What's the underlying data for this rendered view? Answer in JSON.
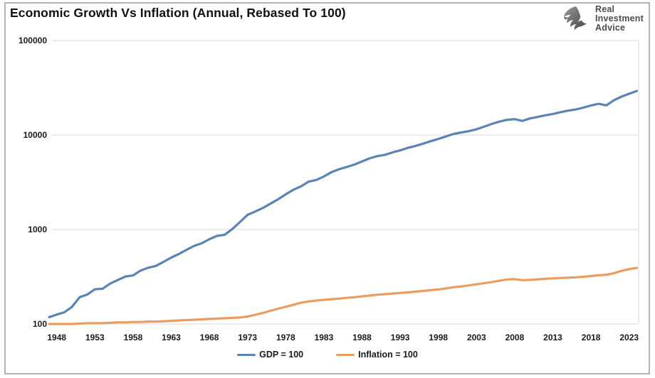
{
  "header": {
    "title": "Economic Growth Vs Inflation (Annual, Rebased To 100)"
  },
  "logo": {
    "lines": [
      "Real",
      "Investment",
      "Advice"
    ]
  },
  "chart_data": {
    "type": "line",
    "title": "Economic Growth Vs Inflation (Annual, Rebased To 100)",
    "y_scale": "log",
    "ylim": [
      100,
      100000
    ],
    "y_ticks": [
      100,
      1000,
      10000,
      100000
    ],
    "x_ticks": [
      1948,
      1953,
      1958,
      1963,
      1968,
      1973,
      1978,
      1983,
      1988,
      1993,
      1998,
      2003,
      2008,
      2013,
      2018,
      2023
    ],
    "grid": "horizontal",
    "legend_position": "bottom",
    "colors": {
      "gdp": "#5b83b4",
      "inflation": "#eb9c60",
      "gridline": "#d9d9d9",
      "text": "#1a1a1a"
    },
    "x": [
      1947,
      1948,
      1949,
      1950,
      1951,
      1952,
      1953,
      1954,
      1955,
      1956,
      1957,
      1958,
      1959,
      1960,
      1961,
      1962,
      1963,
      1964,
      1965,
      1966,
      1967,
      1968,
      1969,
      1970,
      1971,
      1972,
      1973,
      1974,
      1975,
      1976,
      1977,
      1978,
      1979,
      1980,
      1981,
      1982,
      1983,
      1984,
      1985,
      1986,
      1987,
      1988,
      1989,
      1990,
      1991,
      1992,
      1993,
      1994,
      1995,
      1996,
      1997,
      1998,
      1999,
      2000,
      2001,
      2002,
      2003,
      2004,
      2005,
      2006,
      2007,
      2008,
      2009,
      2010,
      2011,
      2012,
      2013,
      2014,
      2015,
      2016,
      2017,
      2018,
      2019,
      2020,
      2021,
      2022,
      2023,
      2024
    ],
    "series": [
      {
        "name": "GDP = 100",
        "values": [
          118,
          126,
          133,
          152,
          192,
          205,
          233,
          236,
          268,
          292,
          318,
          327,
          368,
          394,
          412,
          455,
          505,
          550,
          610,
          672,
          715,
          790,
          855,
          880,
          1010,
          1200,
          1428,
          1549,
          1689,
          1878,
          2086,
          2357,
          2632,
          2862,
          3211,
          3345,
          3638,
          4041,
          4347,
          4590,
          4870,
          5253,
          5658,
          5980,
          6174,
          6539,
          6879,
          7309,
          7664,
          8100,
          8609,
          9089,
          9661,
          10285,
          10622,
          10978,
          11511,
          12275,
          13094,
          13856,
          14478,
          14719,
          14100,
          14964,
          15518,
          16155,
          16692,
          17428,
          18121,
          18625,
          19477,
          20533,
          21381,
          20600,
          23315,
          25463,
          27361,
          29185
        ]
      },
      {
        "name": "Inflation = 100",
        "values": [
          100,
          100,
          100,
          100,
          101,
          102,
          102,
          102,
          103,
          104,
          104,
          105,
          105,
          106,
          106,
          107,
          108,
          109,
          110,
          111,
          112,
          113,
          114,
          115,
          116,
          117,
          120,
          125,
          131,
          138,
          145,
          152,
          160,
          168,
          173,
          177,
          180,
          183,
          186,
          189,
          192,
          196,
          200,
          204,
          207,
          210,
          213,
          216,
          220,
          224,
          228,
          232,
          238,
          245,
          250,
          256,
          263,
          270,
          278,
          287,
          296,
          298,
          291,
          293,
          297,
          301,
          304,
          307,
          309,
          312,
          316,
          322,
          328,
          332,
          345,
          365,
          381,
          392
        ]
      }
    ]
  }
}
